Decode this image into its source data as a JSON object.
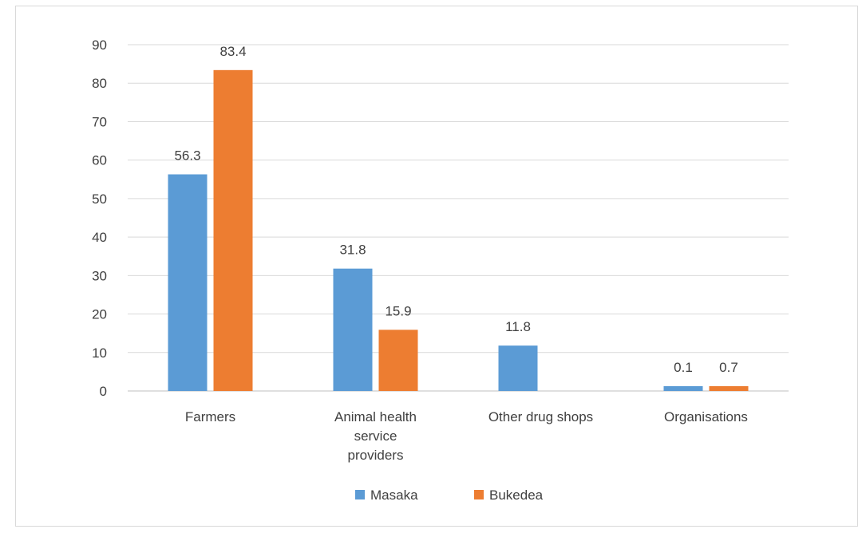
{
  "chart_data": {
    "type": "bar",
    "categories": [
      [
        "Farmers"
      ],
      [
        "Animal health",
        "service",
        "providers"
      ],
      [
        "Other drug shops"
      ],
      [
        "Organisations"
      ]
    ],
    "series": [
      {
        "name": "Masaka",
        "values": [
          56.3,
          31.8,
          11.8,
          0.1
        ],
        "labels": [
          "56.3",
          "31.8",
          "11.8",
          "0.1"
        ],
        "color": "#5b9bd5"
      },
      {
        "name": "Bukedea",
        "values": [
          83.4,
          15.9,
          null,
          0.7
        ],
        "labels": [
          "83.4",
          "15.9",
          null,
          "0.7"
        ],
        "color": "#ed7d31"
      }
    ],
    "ylim": [
      0,
      90
    ],
    "yticks": [
      "0",
      "10",
      "20",
      "30",
      "40",
      "50",
      "60",
      "70",
      "80",
      "90"
    ],
    "grid": true,
    "legend": "bottom"
  }
}
